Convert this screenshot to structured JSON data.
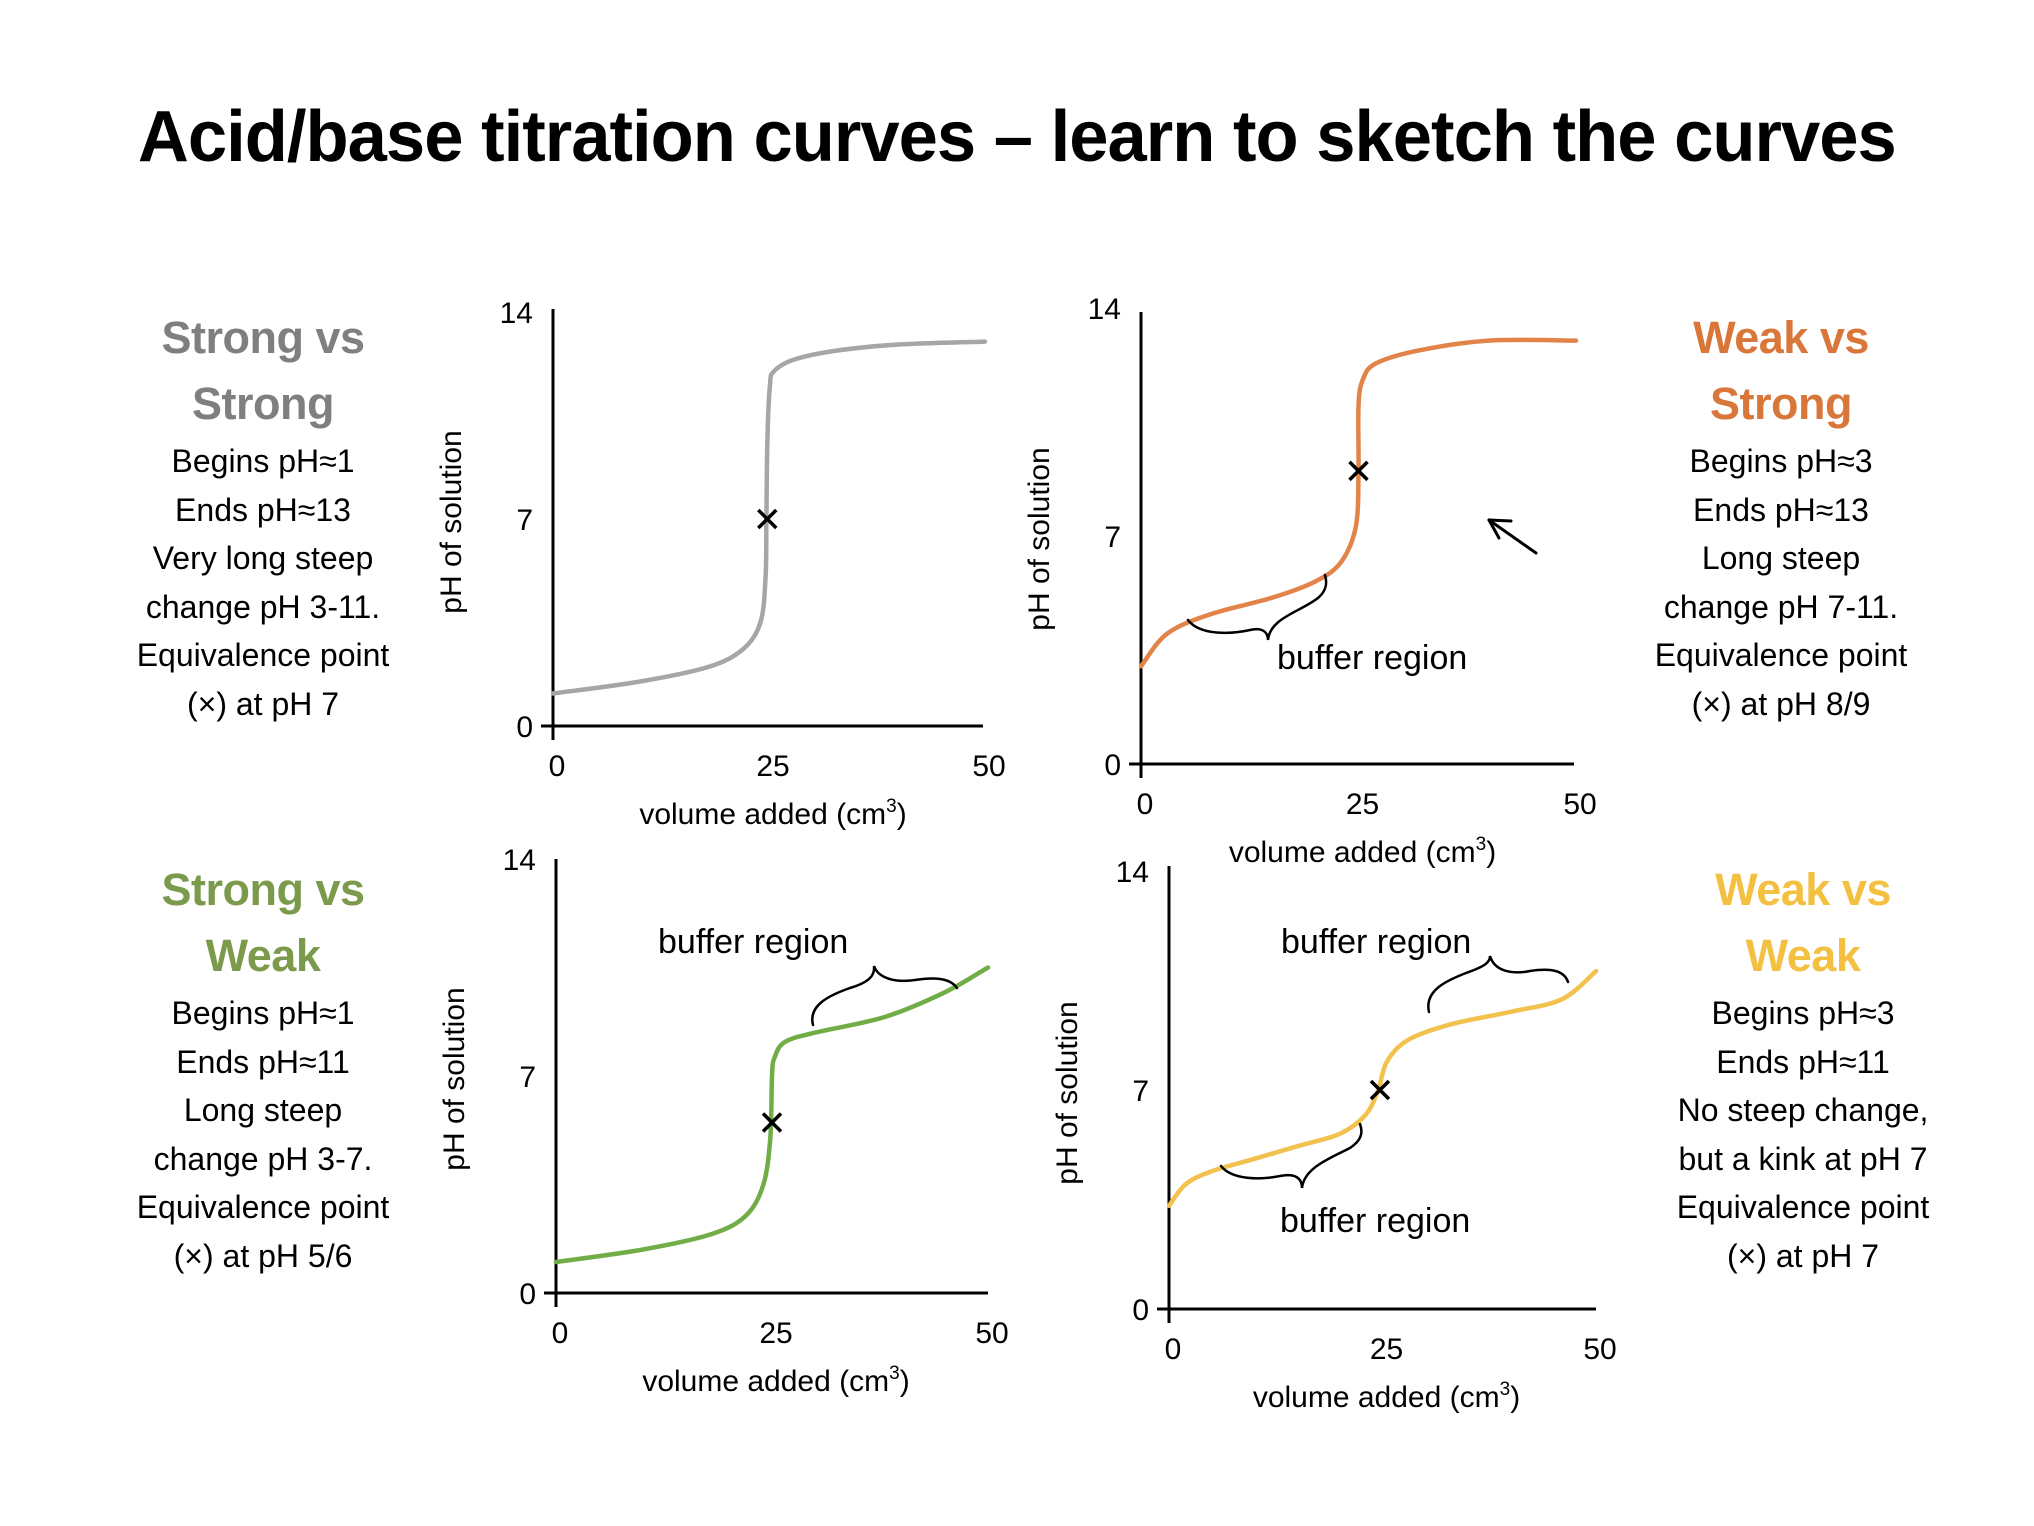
{
  "title": "Acid/base titration curves – learn to sketch the curves",
  "panels": [
    {
      "id": "strong-strong",
      "heading": [
        "Strong vs",
        "Strong"
      ],
      "color": "#7f7f7f",
      "curve_color": "#a6a6a6",
      "lines": [
        "Begins pH≈1",
        "Ends pH≈13",
        "Very long steep",
        "change pH 3-11.",
        "Equivalence point",
        "(×) at pH 7"
      ]
    },
    {
      "id": "weak-strong",
      "heading": [
        "Weak vs",
        "Strong"
      ],
      "color": "#d9773a",
      "curve_color": "#e2844a",
      "lines": [
        "Begins pH≈3",
        "Ends pH≈13",
        "Long steep",
        "change pH 7-11.",
        "Equivalence point",
        "(×) at pH 8/9"
      ]
    },
    {
      "id": "strong-weak",
      "heading": [
        "Strong vs",
        "Weak"
      ],
      "color": "#7b9a4c",
      "curve_color": "#70ad47",
      "lines": [
        "Begins pH≈1",
        "Ends pH≈11",
        "Long steep",
        "change pH 3-7.",
        "Equivalence point",
        "(×) at pH 5/6"
      ]
    },
    {
      "id": "weak-weak",
      "heading": [
        "Weak vs",
        "Weak"
      ],
      "color": "#f4c042",
      "curve_color": "#f2c14e",
      "lines": [
        "Begins pH≈3",
        "Ends pH≈11",
        "No steep change,",
        "but a kink at pH 7",
        "Equivalence point",
        "(×) at pH 7"
      ]
    }
  ],
  "chart_data": [
    {
      "type": "line",
      "title": "Strong vs Strong",
      "xlabel": "volume added (cm³)",
      "xlabel_main": "volume added (cm",
      "xlabel_sup": "3",
      "xlabel_end": ")",
      "ylabel": "pH of solution",
      "xlim": [
        0,
        50
      ],
      "ylim": [
        0,
        14
      ],
      "xticks": [
        0,
        25,
        50
      ],
      "yticks": [
        0,
        7,
        14
      ],
      "grid": false,
      "series": [
        {
          "name": "pH",
          "x": [
            0,
            10,
            18,
            22,
            24,
            24.6,
            24.7,
            24.8,
            25.1,
            25.6,
            28,
            33,
            40,
            50
          ],
          "y": [
            1.1,
            1.5,
            2.0,
            2.6,
            3.5,
            5.0,
            7.0,
            9.5,
            11.5,
            12.0,
            12.4,
            12.7,
            12.9,
            13.0
          ]
        }
      ],
      "equivalence_point": {
        "x": 24.8,
        "y": 7.0
      },
      "annotations": []
    },
    {
      "type": "line",
      "title": "Weak vs Strong",
      "xlabel": "volume added (cm³)",
      "xlabel_main": "volume added (cm",
      "xlabel_sup": "3",
      "xlabel_end": ")",
      "ylabel": "pH of solution",
      "xlim": [
        0,
        50
      ],
      "ylim": [
        0,
        14
      ],
      "xticks": [
        0,
        25,
        50
      ],
      "yticks": [
        0,
        7,
        14
      ],
      "grid": false,
      "series": [
        {
          "name": "pH",
          "x": [
            0,
            3,
            8,
            15,
            20,
            23,
            24.7,
            25.0,
            25.0,
            25.5,
            27,
            32,
            40,
            50
          ],
          "y": [
            3.0,
            4.0,
            4.6,
            5.1,
            5.6,
            6.2,
            7.3,
            9.0,
            11.0,
            11.8,
            12.3,
            12.7,
            13.0,
            13.0
          ]
        }
      ],
      "equivalence_point": {
        "x": 25.0,
        "y": 9.0
      },
      "annotations": [
        {
          "text": "buffer region",
          "kind": "brace-below",
          "from_x": 5,
          "to_x": 21
        },
        {
          "text": "",
          "kind": "arrow",
          "pointing": "up-left"
        }
      ]
    },
    {
      "type": "line",
      "title": "Strong vs Weak",
      "xlabel": "volume added (cm³)",
      "xlabel_main": "volume added (cm",
      "xlabel_sup": "3",
      "xlabel_end": ")",
      "ylabel": "pH of solution",
      "xlim": [
        0,
        50
      ],
      "ylim": [
        0,
        14
      ],
      "xticks": [
        0,
        25,
        50
      ],
      "yticks": [
        0,
        7,
        14
      ],
      "grid": false,
      "series": [
        {
          "name": "pH",
          "x": [
            0,
            10,
            18,
            22,
            24,
            24.8,
            25.0,
            25.3,
            26.5,
            30,
            38,
            45,
            50
          ],
          "y": [
            1.0,
            1.4,
            1.9,
            2.5,
            3.5,
            5.0,
            7.0,
            7.6,
            8.1,
            8.4,
            8.9,
            9.7,
            10.5
          ]
        }
      ],
      "equivalence_point": {
        "x": 25.0,
        "y": 5.5
      },
      "annotations": [
        {
          "text": "buffer region",
          "kind": "brace-above",
          "from_x": 30,
          "to_x": 46
        }
      ]
    },
    {
      "type": "line",
      "title": "Weak vs Weak",
      "xlabel": "volume added (cm³)",
      "xlabel_main": "volume added (cm",
      "xlabel_sup": "3",
      "xlabel_end": ")",
      "ylabel": "pH of solution",
      "xlim": [
        0,
        50
      ],
      "ylim": [
        0,
        14
      ],
      "xticks": [
        0,
        25,
        50
      ],
      "yticks": [
        0,
        7,
        14
      ],
      "grid": false,
      "series": [
        {
          "name": "pH",
          "x": [
            0,
            2,
            5,
            10,
            15,
            20,
            23,
            24.5,
            25.5,
            28,
            33,
            40,
            46,
            50
          ],
          "y": [
            3.3,
            4.0,
            4.4,
            4.8,
            5.2,
            5.6,
            6.2,
            7.0,
            7.9,
            8.6,
            9.1,
            9.5,
            9.9,
            10.8
          ]
        }
      ],
      "equivalence_point": {
        "x": 24.7,
        "y": 7.0
      },
      "annotations": [
        {
          "text": "buffer region",
          "kind": "brace-above",
          "from_x": 30,
          "to_x": 47
        },
        {
          "text": "buffer region",
          "kind": "brace-below",
          "from_x": 6,
          "to_x": 22
        }
      ]
    }
  ]
}
